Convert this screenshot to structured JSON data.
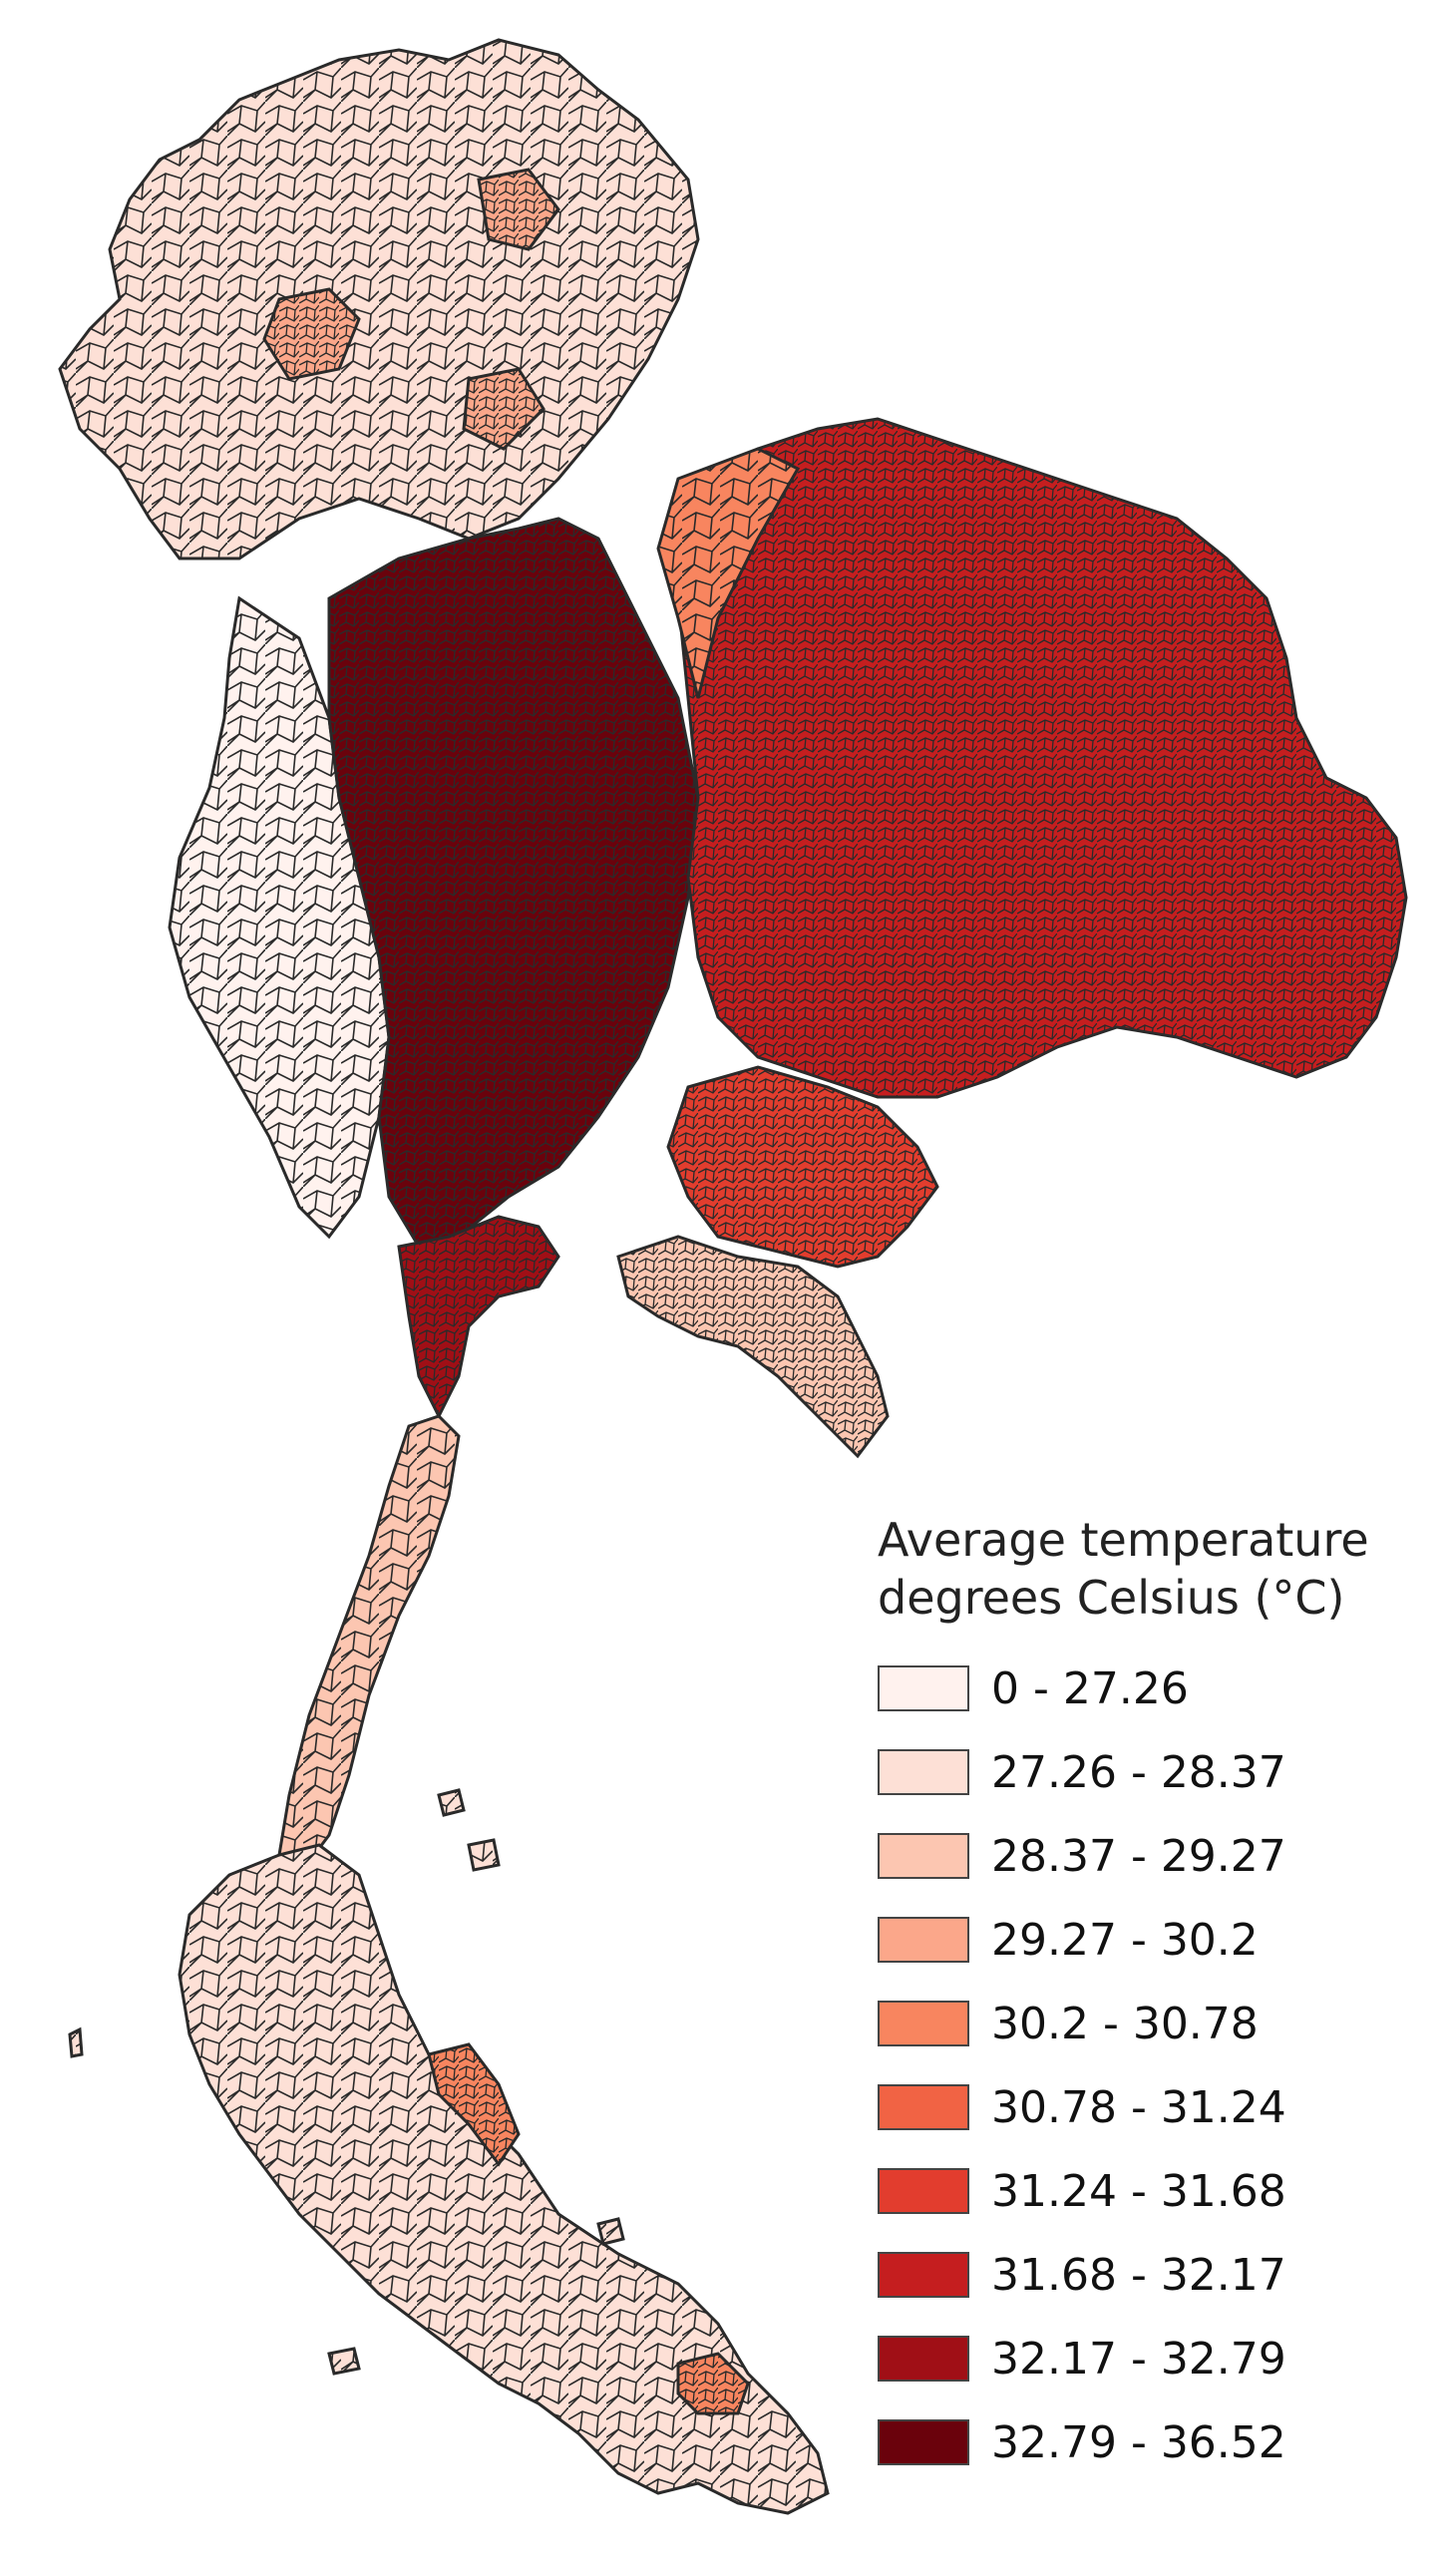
{
  "legend": {
    "title_line1": "Average temperature",
    "title_line2": "degrees Celsius (°C)",
    "classes": [
      {
        "label": "0 - 27.26",
        "color": "#fff2ee"
      },
      {
        "label": "27.26 - 28.37",
        "color": "#fde0d6"
      },
      {
        "label": "28.37 - 29.27",
        "color": "#fcc6b1"
      },
      {
        "label": "29.27 - 30.2",
        "color": "#fba78a"
      },
      {
        "label": "30.2 - 30.78",
        "color": "#f8855f"
      },
      {
        "label": "30.78 - 31.24",
        "color": "#f16344"
      },
      {
        "label": "31.24 - 31.68",
        "color": "#e23d2e"
      },
      {
        "label": "31.68 - 32.17",
        "color": "#c51e1f"
      },
      {
        "label": "32.17 - 32.79",
        "color": "#a00f16"
      },
      {
        "label": "32.79 - 36.52",
        "color": "#6a020c"
      }
    ]
  },
  "map": {
    "boundary_color": "#2a2a2a",
    "region_classes": {
      "north": 1,
      "north_basins": 3,
      "west_border": 0,
      "central": 9,
      "central_south": 8,
      "northeast": 7,
      "northeast_rim": 4,
      "east": 6,
      "southeast": 2,
      "isthmus": 2,
      "south": 1,
      "south_east_coast": 4
    }
  }
}
